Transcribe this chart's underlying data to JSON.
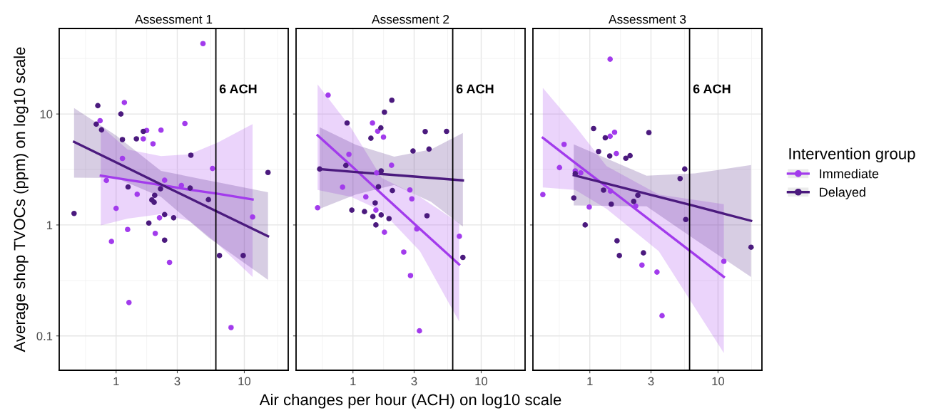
{
  "chart_data": [
    {
      "type": "scatter",
      "title": "Assessment 1",
      "ylabel": "Average shop TVOCs (ppm) on log10 scale",
      "log": "xy",
      "grid": true,
      "xlim": [
        0.36,
        22
      ],
      "ylim": [
        0.049,
        59
      ],
      "xticks": [
        1,
        3,
        10
      ],
      "yticks": [
        0.1,
        1,
        10
      ],
      "ref_lines": [
        {
          "axis": "x",
          "value": 6,
          "label": "6 ACH",
          "color": "#000000"
        }
      ],
      "series": [
        {
          "marker": "circle",
          "color": "#a23bec",
          "x": [
            4.76,
            1.16,
            0.75,
            1.73,
            1.63,
            2.24,
            3.44,
            1.94,
            1.12,
            5.65,
            0.84,
            2.39,
            3.23,
            1.46,
            1.0,
            2.18,
            11.6,
            1.23,
            2.02,
            0.92,
            2.61,
            1.26,
            7.88
          ],
          "values": [
            43.1,
            12.7,
            8.7,
            7.1,
            5.97,
            7.16,
            8.2,
            5.38,
            3.98,
            3.23,
            2.52,
            2.53,
            2.27,
            1.89,
            1.41,
            1.16,
            1.18,
            0.91,
            0.84,
            0.71,
            0.46,
            0.2,
            0.119
          ]
        },
        {
          "marker": "circle",
          "color": "#4b1a7e",
          "x": [
            0.72,
            1.09,
            0.7,
            0.77,
            1.63,
            1.12,
            1.44,
            3.83,
            0.47,
            1.24,
            2.22,
            3.78,
            2.0,
            1.9,
            1.98,
            5.25,
            2.39,
            2.81,
            1.8,
            2.39,
            6.4,
            9.8,
            15.3
          ],
          "values": [
            11.9,
            10,
            8.1,
            7.2,
            6.98,
            5.88,
            5.97,
            4.25,
            1.27,
            2.2,
            2.12,
            2.15,
            1.85,
            1.68,
            1.6,
            1.69,
            1.24,
            1.16,
            1.04,
            0.73,
            0.53,
            0.53,
            2.97
          ]
        },
        {
          "type": "line",
          "color": "#a23bec",
          "x": [
            0.76,
            1.23,
            2.24,
            3.73,
            6.23,
            11.6
          ],
          "values": [
            2.78,
            2.55,
            2.29,
            2.08,
            1.91,
            1.7
          ],
          "lower": [
            0.99,
            1.14,
            1.25,
            1.09,
            0.67,
            0.34
          ],
          "upper": [
            7.8,
            4.78,
            4.17,
            4.33,
            5.54,
            8.1
          ]
        },
        {
          "type": "line",
          "color": "#4b1a7e",
          "x": [
            0.47,
            1.0,
            2.24,
            5.25,
            15.3
          ],
          "values": [
            5.6,
            3.66,
            2.32,
            1.44,
            0.79
          ],
          "lower": [
            2.67,
            2.65,
            1.79,
            0.77,
            0.32
          ],
          "upper": [
            11.3,
            6.4,
            3.07,
            2.52,
            1.97
          ]
        }
      ]
    },
    {
      "type": "scatter",
      "title": "Assessment 2",
      "xlabel": "Air changes per hour (ACH) on log10 scale",
      "log": "xy",
      "grid": true,
      "tick_labels": "x",
      "xlim": [
        0.36,
        22
      ],
      "ylim": [
        0.049,
        59
      ],
      "xticks": [
        1,
        3,
        10
      ],
      "yticks": [
        0.1,
        1,
        10
      ],
      "ref_lines": [
        {
          "axis": "x",
          "value": 6,
          "label": "6 ACH",
          "color": "#000000"
        }
      ],
      "series": [
        {
          "marker": "circle",
          "color": "#a23bec",
          "x": [
            0.64,
            1.42,
            1.56,
            1.73,
            0.93,
            2.0,
            1.53,
            0.83,
            2.78,
            2.88,
            1.26,
            0.53,
            1.51,
            1.76,
            3.15,
            6.76,
            2.49,
            2.81,
            3.3
          ],
          "values": [
            14.8,
            8.3,
            7.0,
            6.2,
            4.33,
            3.45,
            2.95,
            2.19,
            2.07,
            1.72,
            1.79,
            1.43,
            1.36,
            0.86,
            0.92,
            0.79,
            0.57,
            0.35,
            0.111
          ]
        },
        {
          "marker": "circle",
          "color": "#4b1a7e",
          "x": [
            2.01,
            1.76,
            0.9,
            1.65,
            1.38,
            3.66,
            5.37,
            2.94,
            3.92,
            0.55,
            0.88,
            1.66,
            1.58,
            2.03,
            1.49,
            0.98,
            1.23,
            1.43,
            1.66,
            1.91,
            1.51,
            3.78,
            7.2
          ],
          "values": [
            13.3,
            10.4,
            8.3,
            7.5,
            6.05,
            6.95,
            6.98,
            4.64,
            4.83,
            3.19,
            3.44,
            3.07,
            2.21,
            2.04,
            1.58,
            1.36,
            1.32,
            1.19,
            1.23,
            1.14,
            1.0,
            1.21,
            0.51
          ]
        },
        {
          "type": "line",
          "color": "#a23bec",
          "x": [
            0.53,
            0.97,
            1.68,
            3.33,
            6.73
          ],
          "values": [
            6.42,
            3.42,
            1.9,
            0.92,
            0.44
          ],
          "lower": [
            2.07,
            1.79,
            1.33,
            0.58,
            0.135
          ],
          "upper": [
            18.5,
            7.45,
            2.65,
            1.79,
            1.04
          ]
        },
        {
          "type": "line",
          "color": "#4b1a7e",
          "x": [
            0.55,
            1.05,
            2.1,
            4.05,
            7.2
          ],
          "values": [
            3.19,
            3.0,
            2.82,
            2.66,
            2.52
          ],
          "lower": [
            1.4,
            1.88,
            2.29,
            1.62,
            0.97
          ],
          "upper": [
            7.6,
            5.28,
            4.12,
            4.78,
            6.75
          ]
        }
      ]
    },
    {
      "type": "scatter",
      "title": "Assessment 3",
      "legend_title": "Intervention group",
      "legend": "right",
      "log": "xy",
      "grid": true,
      "tick_labels": "x",
      "xlim": [
        0.36,
        22
      ],
      "ylim": [
        0.049,
        59
      ],
      "xticks": [
        1,
        3,
        10
      ],
      "yticks": [
        0.1,
        1,
        10
      ],
      "ref_lines": [
        {
          "axis": "x",
          "value": 6,
          "label": "6 ACH",
          "color": "#000000"
        }
      ],
      "series": [
        {
          "name": "Immediate",
          "marker": "circle",
          "color": "#a23bec",
          "x": [
            1.44,
            1.56,
            1.44,
            1.61,
            0.63,
            0.58,
            0.77,
            0.85,
            0.43,
            1.45,
            2.28,
            0.99,
            11.1,
            2.55,
            3.34,
            3.66
          ],
          "values": [
            31.2,
            6.85,
            6.3,
            4.4,
            5.33,
            3.29,
            3.07,
            2.95,
            1.88,
            2.02,
            1.48,
            1.45,
            0.47,
            0.435,
            0.376,
            0.152
          ]
        },
        {
          "name": "Delayed",
          "marker": "circle",
          "color": "#4b1a7e",
          "x": [
            1.07,
            2.89,
            1.32,
            1.17,
            1.43,
            1.91,
            2.06,
            5.5,
            5.06,
            0.77,
            1.28,
            2.37,
            2.2,
            1.47,
            0.75,
            5.6,
            0.92,
            1.63,
            1.7,
            2.62,
            18.1
          ],
          "values": [
            7.4,
            6.8,
            6.1,
            4.59,
            4.19,
            3.99,
            4.21,
            3.19,
            2.62,
            2.9,
            2.06,
            1.85,
            1.63,
            1.54,
            1.75,
            1.12,
            1.0,
            0.72,
            0.53,
            0.56,
            0.63
          ]
        },
        {
          "type": "line",
          "color": "#a23bec",
          "x": [
            0.43,
            0.77,
            1.35,
            3.45,
            11.1
          ],
          "values": [
            6.1,
            3.62,
            2.21,
            0.96,
            0.34
          ],
          "lower": [
            2.18,
            2.07,
            1.4,
            0.58,
            0.07
          ],
          "upper": [
            17.2,
            7.8,
            3.39,
            1.88,
            1.54
          ]
        },
        {
          "type": "line",
          "color": "#4b1a7e",
          "x": [
            0.75,
            2.77,
            6.6,
            18.1
          ],
          "values": [
            2.81,
            1.91,
            1.48,
            1.09
          ],
          "lower": [
            1.5,
            1.47,
            0.74,
            0.34
          ],
          "upper": [
            5.33,
            2.78,
            2.92,
            3.47
          ]
        }
      ]
    }
  ]
}
